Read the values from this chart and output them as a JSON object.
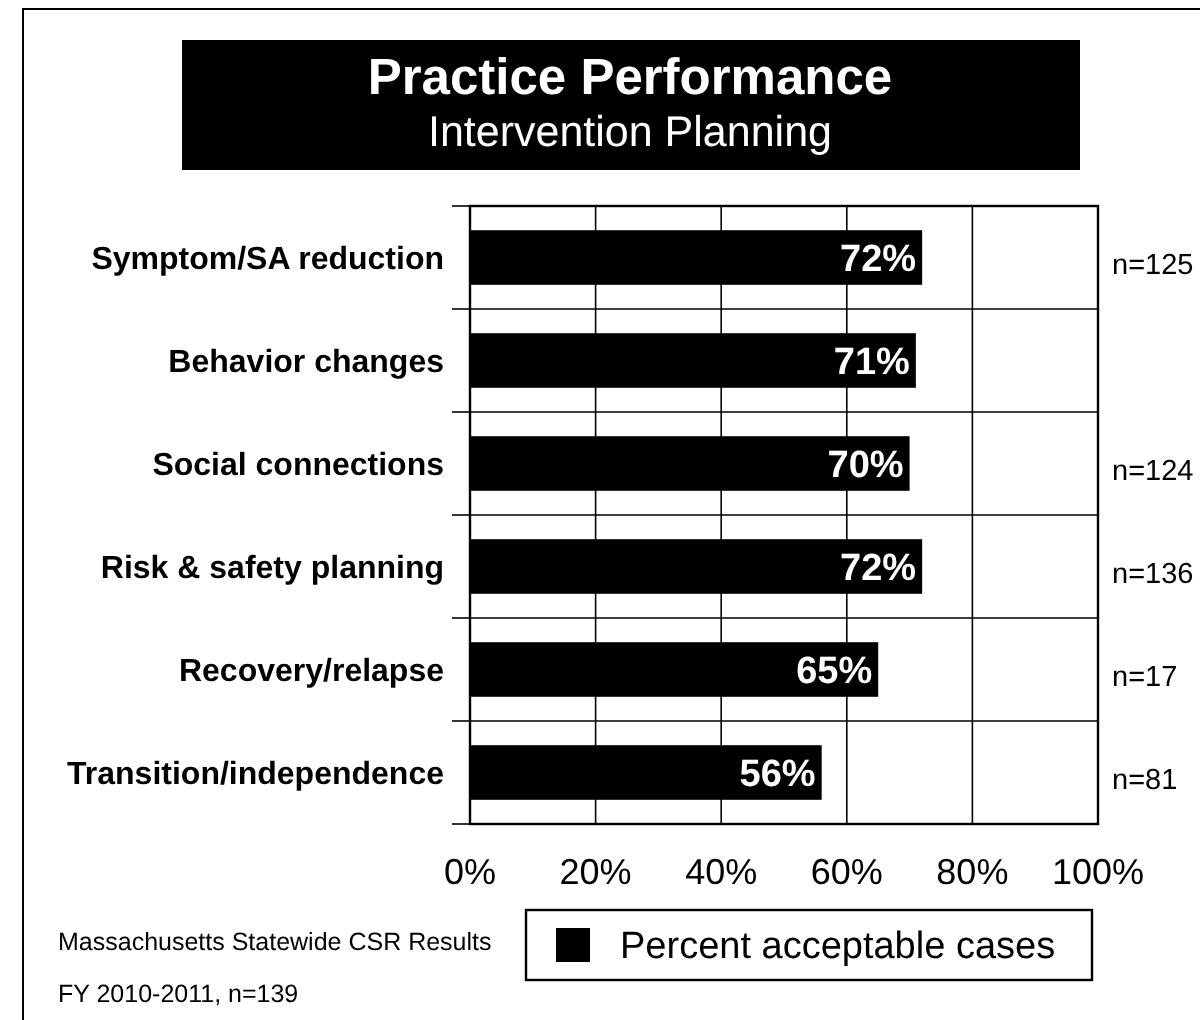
{
  "chart_data": {
    "type": "bar",
    "orientation": "horizontal",
    "title": "Practice Performance",
    "subtitle": "Intervention Planning",
    "categories": [
      "Symptom/SA reduction",
      "Behavior changes",
      "Social connections",
      "Risk & safety planning",
      "Recovery/relapse",
      "Transition/independence"
    ],
    "series": [
      {
        "name": "Percent acceptable cases",
        "color": "#000000",
        "values": [
          72,
          71,
          70,
          72,
          65,
          56
        ],
        "value_labels": [
          "72%",
          "71%",
          "70%",
          "72%",
          "65%",
          "56%"
        ]
      }
    ],
    "xlim": [
      0,
      100
    ],
    "xticks": [
      {
        "value": 0,
        "label": "0%"
      },
      {
        "value": 20,
        "label": "20%"
      },
      {
        "value": 40,
        "label": "40%"
      },
      {
        "value": 60,
        "label": "60%"
      },
      {
        "value": 80,
        "label": "80%"
      },
      {
        "value": 100,
        "label": "100%"
      }
    ],
    "grid": true,
    "legend": "bottom",
    "annotations": [
      "n=125",
      "n=124",
      "n=136",
      "n=17",
      "n=81",
      "Massachusetts Statewide CSR Results",
      "FY 2010-2011, n=139"
    ]
  }
}
